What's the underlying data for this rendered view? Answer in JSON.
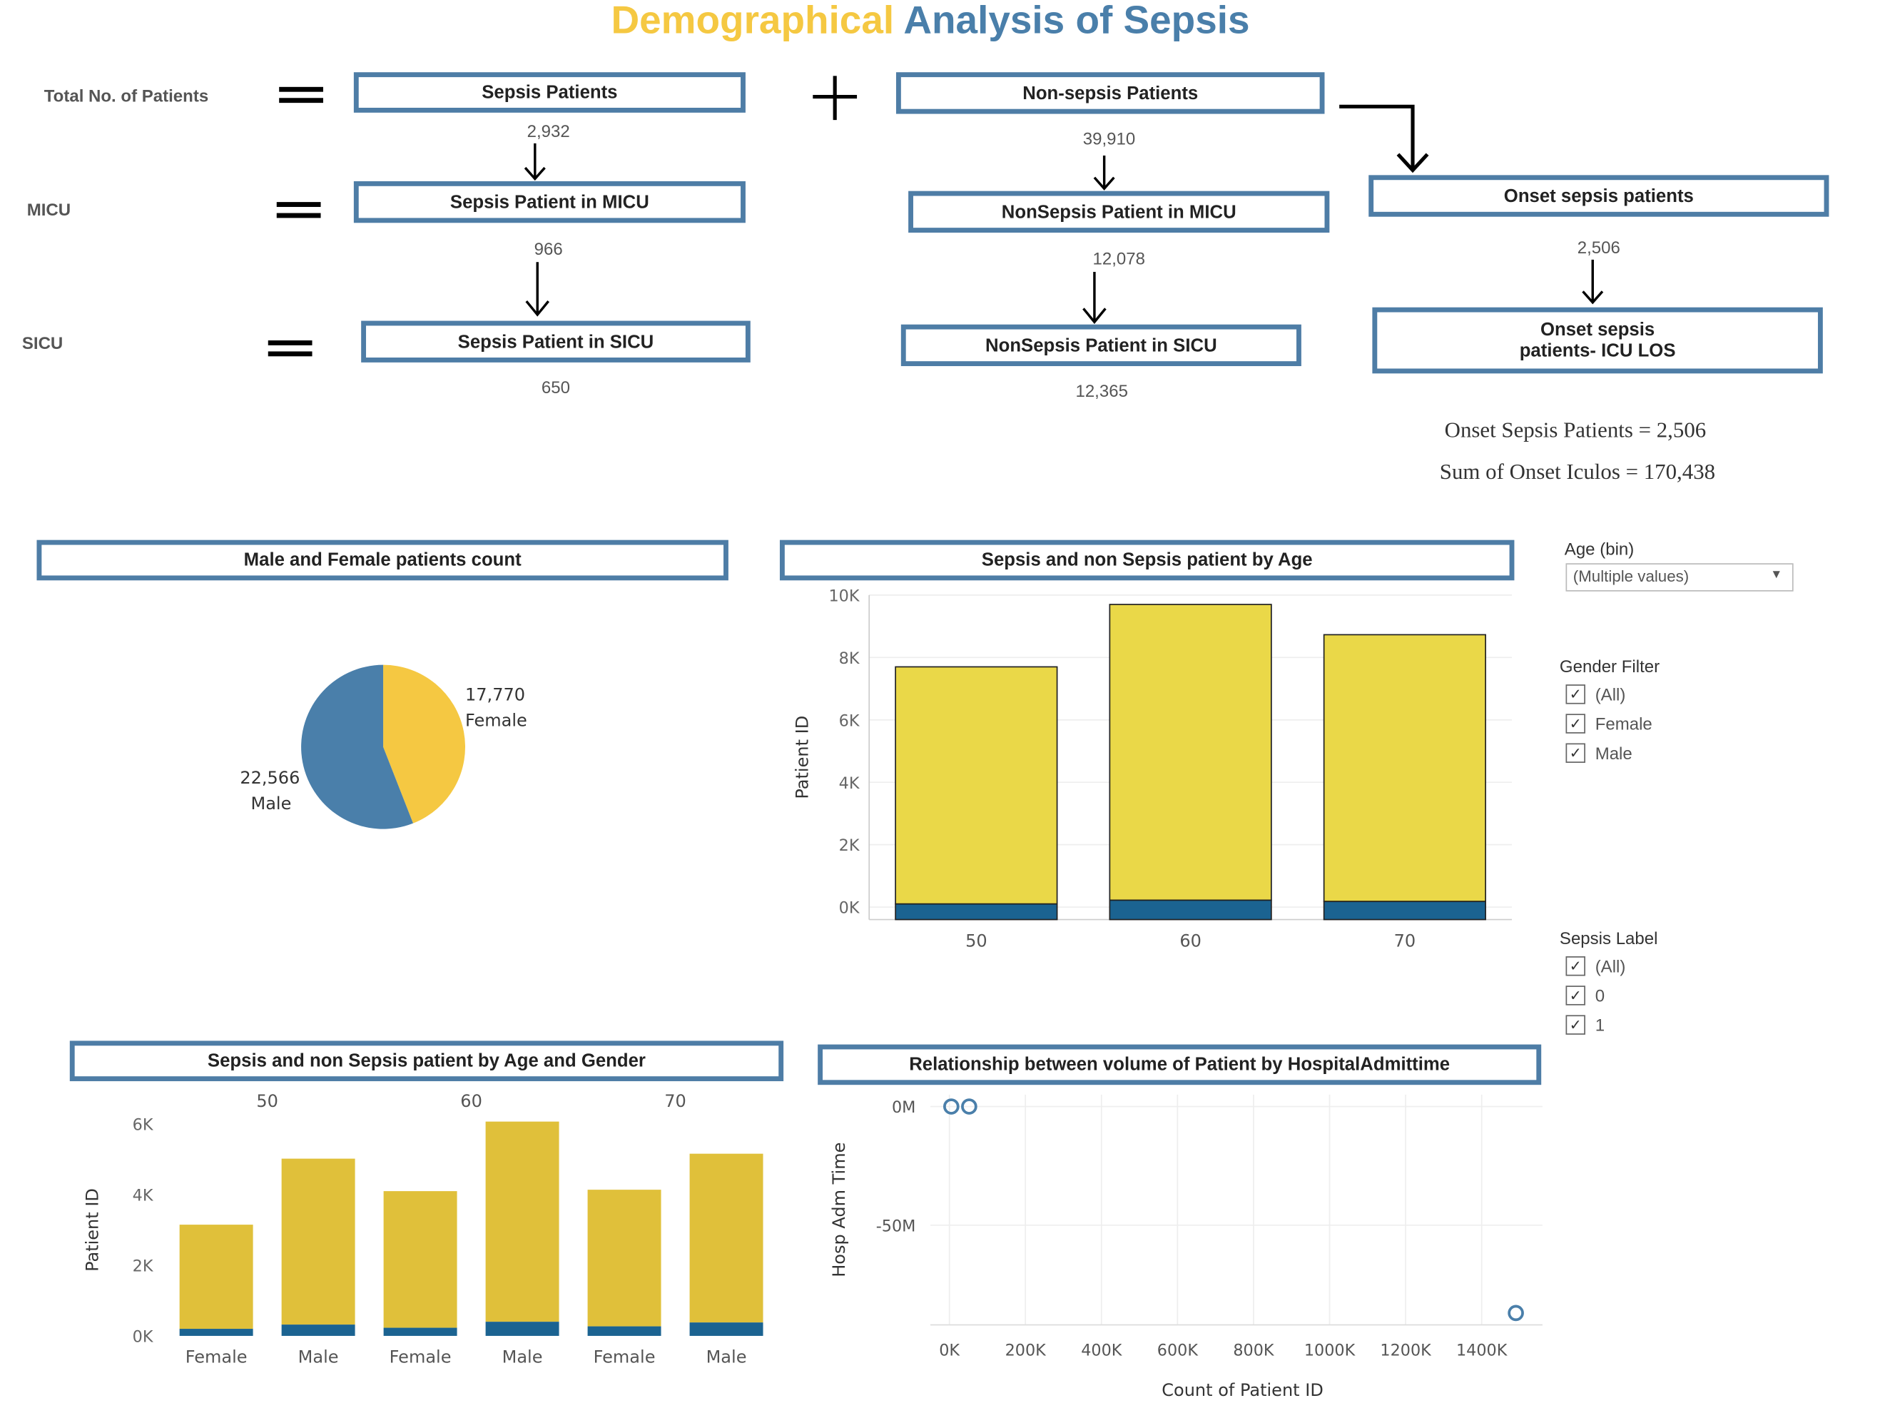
{
  "title": {
    "part1": "Demographical",
    "part2": "Analysis of Sepsis"
  },
  "colors": {
    "brand_yellow": "#f5c842",
    "brand_blue": "#4a7faa",
    "bar_yellow": "#ead848",
    "bar_blue": "#1b6391",
    "bar_yellow2": "#e0c03a",
    "box_border": "#4e7da6"
  },
  "rows": {
    "total": "Total No. of Patients",
    "micu": "MICU",
    "sicu": "SICU"
  },
  "flow": {
    "sepsis_patients": "Sepsis Patients",
    "sepsis_patients_val": "2,932",
    "sepsis_micu": "Sepsis Patient in MICU",
    "sepsis_micu_val": "966",
    "sepsis_sicu": "Sepsis Patient in SICU",
    "sepsis_sicu_val": "650",
    "nonsepsis_patients": "Non-sepsis Patients",
    "nonsepsis_patients_val": "39,910",
    "nonsepsis_micu": "NonSepsis Patient in MICU",
    "nonsepsis_micu_val": "12,078",
    "nonsepsis_sicu": "NonSepsis Patient in SICU",
    "nonsepsis_sicu_val": "12,365",
    "onset_patients": "Onset sepsis patients",
    "onset_patients_val": "2,506",
    "onset_los_1": "Onset sepsis",
    "onset_los_2": "patients- ICU LOS"
  },
  "onset_summary": {
    "line1": "Onset Sepsis Patients = 2,506",
    "line2": "Sum of Onset Iculos = 170,438"
  },
  "chart_titles": {
    "pie": "Male and Female patients count",
    "age": "Sepsis and non Sepsis patient by Age",
    "age_gender": "Sepsis and non Sepsis patient by Age and Gender",
    "scatter": "Relationship between volume of Patient by HospitalAdmittime"
  },
  "filters": {
    "age_bin": {
      "title": "Age (bin)",
      "value": "(Multiple values)"
    },
    "gender": {
      "title": "Gender Filter",
      "options": [
        "(All)",
        "Female",
        "Male"
      ]
    },
    "sepsis": {
      "title": "Sepsis Label",
      "options": [
        "(All)",
        "0",
        "1"
      ]
    }
  },
  "chart_data": [
    {
      "type": "pie",
      "title": "Male and Female patients count",
      "labels": [
        "Female",
        "Male"
      ],
      "values": [
        17770,
        22566
      ],
      "value_labels": [
        "17,770",
        "22,566"
      ],
      "colors": [
        "#f5c842",
        "#4a7faa"
      ]
    },
    {
      "type": "bar",
      "title": "Sepsis and non Sepsis patient by Age",
      "categories": [
        "50",
        "60",
        "70"
      ],
      "ylabel": "Patient ID",
      "ylim": [
        -400,
        10000
      ],
      "yticks": [
        0,
        2000,
        4000,
        6000,
        8000,
        10000
      ],
      "ytick_labels": [
        "0K",
        "2K",
        "4K",
        "6K",
        "8K",
        "10K"
      ],
      "series": [
        {
          "name": "1",
          "values": [
            500,
            620,
            580
          ]
        },
        {
          "name": "0",
          "values": [
            7600,
            9480,
            8550
          ]
        }
      ]
    },
    {
      "type": "bar",
      "title": "Sepsis and non Sepsis patient by Age and Gender",
      "groups": [
        "50",
        "60",
        "70"
      ],
      "categories": [
        "Female",
        "Male",
        "Female",
        "Male",
        "Female",
        "Male"
      ],
      "ylabel": "Patient ID",
      "ylim": [
        0,
        6000
      ],
      "yticks": [
        0,
        2000,
        4000,
        6000
      ],
      "ytick_labels": [
        "0K",
        "2K",
        "4K",
        "6K"
      ],
      "series": [
        {
          "name": "1",
          "values": [
            200,
            320,
            230,
            400,
            270,
            380
          ]
        },
        {
          "name": "0",
          "values": [
            2950,
            4700,
            3870,
            5670,
            3870,
            4780
          ]
        }
      ]
    },
    {
      "type": "scatter",
      "title": "Relationship between volume of Patient by HospitalAdmittime",
      "xlabel": "Count of Patient ID",
      "ylabel": "Hosp Adm Time",
      "xlim": [
        -50000,
        1560000
      ],
      "ylim": [
        -92000000,
        5000000
      ],
      "xticks": [
        0,
        200000,
        400000,
        600000,
        800000,
        1000000,
        1200000,
        1400000
      ],
      "xtick_labels": [
        "0K",
        "200K",
        "400K",
        "600K",
        "800K",
        "1000K",
        "1200K",
        "1400K"
      ],
      "yticks": [
        0,
        -50000000
      ],
      "ytick_labels": [
        "0M",
        "-50M"
      ],
      "points": [
        {
          "x": 5000,
          "y": 0
        },
        {
          "x": 52000,
          "y": 0
        },
        {
          "x": 1490000,
          "y": -87000000
        }
      ]
    }
  ]
}
